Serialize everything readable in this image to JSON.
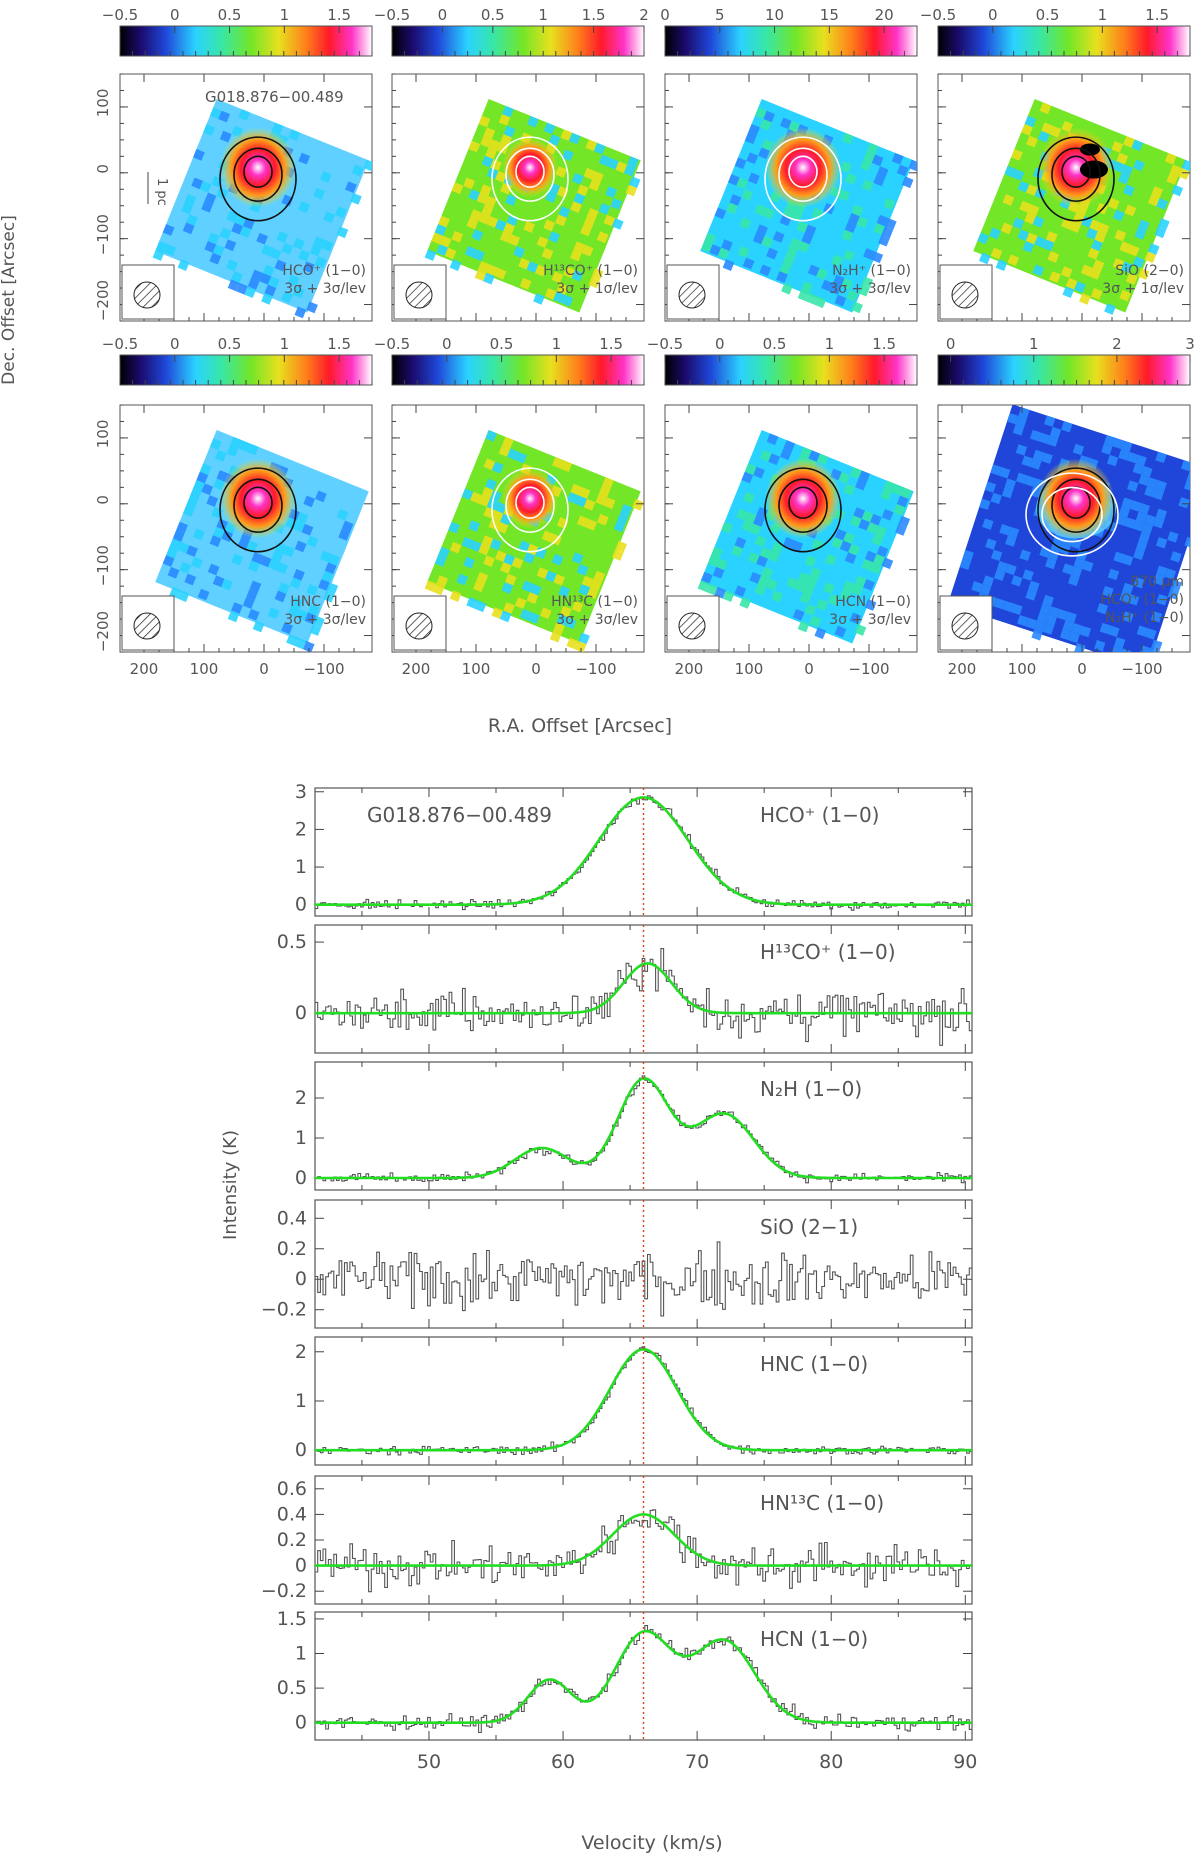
{
  "maps": {
    "ylabel": "Dec. Offset [Arcsec]",
    "xlabel": "R.A. Offset [Arcsec]",
    "xticks": [
      "200",
      "100",
      "0",
      "−100"
    ],
    "yticks": [
      "100",
      "0",
      "−100",
      "−200"
    ],
    "scalebar_label": "1 pc",
    "panels": [
      {
        "colorbar_ticks": [
          "−0.5",
          "0",
          "0.5",
          "1",
          "1.5"
        ],
        "source": "G018.876−00.489",
        "line": "HCO⁺ (1−0)",
        "levels": "3σ + 3σ/lev"
      },
      {
        "colorbar_ticks": [
          "−0.5",
          "0",
          "0.5",
          "1",
          "1.5",
          "2"
        ],
        "source": "",
        "line": "H¹³CO⁺ (1−0)",
        "levels": "3σ + 1σ/lev"
      },
      {
        "colorbar_ticks": [
          "0",
          "5",
          "10",
          "15",
          "20"
        ],
        "source": "",
        "line": "N₂H⁺ (1−0)",
        "levels": "3σ + 3σ/lev"
      },
      {
        "colorbar_ticks": [
          "−0.5",
          "0",
          "0.5",
          "1",
          "1.5"
        ],
        "source": "",
        "line": "SiO (2−0)",
        "levels": "3σ + 1σ/lev"
      },
      {
        "colorbar_ticks": [
          "−0.5",
          "0",
          "0.5",
          "1",
          "1.5"
        ],
        "source": "",
        "line": "HNC (1−0)",
        "levels": "3σ + 3σ/lev"
      },
      {
        "colorbar_ticks": [
          "−0.5",
          "0",
          "0.5",
          "1",
          "1.5"
        ],
        "source": "",
        "line": "HN¹³C (1−0)",
        "levels": "3σ + 3σ/lev"
      },
      {
        "colorbar_ticks": [
          "−0.5",
          "0",
          "0.5",
          "1",
          "1.5"
        ],
        "source": "",
        "line": "HCN (1−0)",
        "levels": "3σ + 3σ/lev"
      },
      {
        "colorbar_ticks": [
          "0",
          "1",
          "2",
          "3"
        ],
        "source": "",
        "line": "870 μm",
        "levels": "HCO⁺ (1−0)",
        "extra": "N₂H⁺ (1−0)"
      }
    ],
    "colors": {
      "contour_dark": "#111111",
      "contour_light": "#ffffff"
    }
  },
  "chart_data": {
    "type": "line",
    "title": "G018.876−00.489",
    "xlabel": "Velocity (km/s)",
    "ylabel": "Intensity (K)",
    "xlim": [
      41.5,
      90.5
    ],
    "xticks": [
      50,
      60,
      70,
      80,
      90
    ],
    "vlsr": 66,
    "colors": {
      "spectrum": "#555555",
      "fit": "#22dd22",
      "vline": "#e04020"
    },
    "panels": [
      {
        "label": "HCO⁺ (1−0)",
        "ylim": [
          -0.3,
          3.1
        ],
        "yticks": [
          "0",
          "1",
          "2",
          "3"
        ],
        "ytick_values": [
          0,
          1,
          2,
          3
        ],
        "noise": 0.08,
        "fit": [
          {
            "amp": 2.85,
            "center": 66.0,
            "sigma": 3.3
          }
        ]
      },
      {
        "label": "H¹³CO⁺ (1−0)",
        "ylim": [
          -0.28,
          0.62
        ],
        "yticks": [
          "0",
          "0.5"
        ],
        "ytick_values": [
          0,
          0.5
        ],
        "noise": 0.11,
        "fit": [
          {
            "amp": 0.35,
            "center": 66.3,
            "sigma": 1.8
          }
        ]
      },
      {
        "label": "N₂H (1−0)",
        "ylim": [
          -0.3,
          2.9
        ],
        "yticks": [
          "0",
          "1",
          "2"
        ],
        "ytick_values": [
          0,
          1,
          2
        ],
        "noise": 0.08,
        "fit": [
          {
            "amp": 0.75,
            "center": 58.4,
            "sigma": 2.0
          },
          {
            "amp": 2.45,
            "center": 66.0,
            "sigma": 1.9
          },
          {
            "amp": 1.6,
            "center": 72.0,
            "sigma": 2.2
          }
        ]
      },
      {
        "label": "SiO (2−1)",
        "ylim": [
          -0.32,
          0.52
        ],
        "yticks": [
          "−0.2",
          "0",
          "0.2",
          "0.4"
        ],
        "ytick_values": [
          -0.2,
          0,
          0.2,
          0.4
        ],
        "noise": 0.12,
        "fit": []
      },
      {
        "label": "HNC (1−0)",
        "ylim": [
          -0.3,
          2.3
        ],
        "yticks": [
          "0",
          "1",
          "2"
        ],
        "ytick_values": [
          0,
          1,
          2
        ],
        "noise": 0.06,
        "fit": [
          {
            "amp": 2.05,
            "center": 66.0,
            "sigma": 2.5
          }
        ]
      },
      {
        "label": "HN¹³C (1−0)",
        "ylim": [
          -0.3,
          0.7
        ],
        "yticks": [
          "−0.2",
          "0",
          "0.2",
          "0.4",
          "0.6"
        ],
        "ytick_values": [
          -0.2,
          0,
          0.2,
          0.4,
          0.6
        ],
        "noise": 0.11,
        "fit": [
          {
            "amp": 0.4,
            "center": 66.0,
            "sigma": 2.3
          }
        ]
      },
      {
        "label": "HCN (1−0)",
        "ylim": [
          -0.25,
          1.6
        ],
        "yticks": [
          "0",
          "0.5",
          "1",
          "1.5"
        ],
        "ytick_values": [
          0,
          0.5,
          1,
          1.5
        ],
        "noise": 0.07,
        "fit": [
          {
            "amp": 0.62,
            "center": 59.0,
            "sigma": 1.6
          },
          {
            "amp": 1.28,
            "center": 66.0,
            "sigma": 2.1
          },
          {
            "amp": 1.18,
            "center": 72.0,
            "sigma": 2.3
          }
        ]
      }
    ]
  }
}
